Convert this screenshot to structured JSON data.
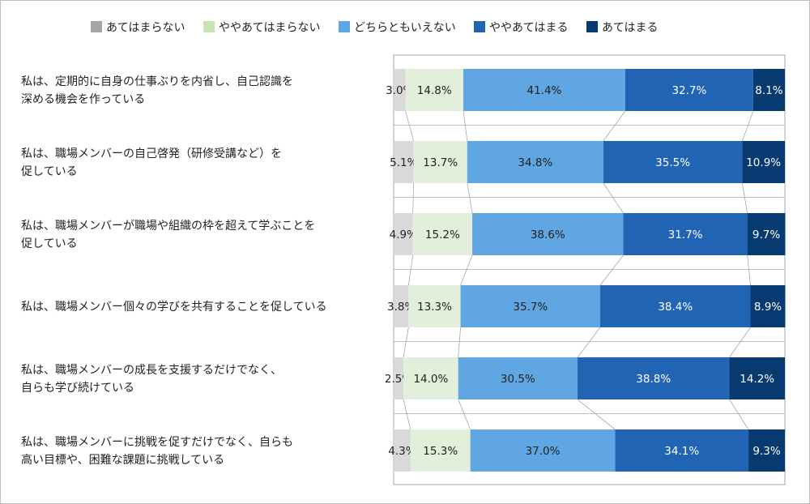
{
  "chart_data": {
    "type": "bar",
    "orientation": "horizontal-stacked-100",
    "legend_position": "top",
    "legend": [
      "あてはまらない",
      "ややあてはまらない",
      "どちらともいえない",
      "ややあてはまる",
      "あてはまる"
    ],
    "colors": [
      "#d9d9d9",
      "#e2efda",
      "#5fa6e2",
      "#2264b4",
      "#063a70"
    ],
    "legend_colors": [
      "#a6a6a6",
      "#c9e3b5",
      "#5fa6e2",
      "#2264b4",
      "#063a70"
    ],
    "label_colors": [
      "#222222",
      "#222222",
      "#222222",
      "#ffffff",
      "#ffffff"
    ],
    "categories": [
      "私は、定期的に自身の仕事ぶりを内省し、自己認識を\n深める機会を作っている",
      "私は、職場メンバーの自己啓発（研修受講など）を\n促している",
      "私は、職場メンバーが職場や組織の枠を超えて学ぶことを\n促している",
      "私は、職場メンバー個々の学びを共有することを促している",
      "私は、職場メンバーの成長を支援するだけでなく、\n自らも学び続けている",
      "私は、職場メンバーに挑戦を促すだけでなく、自らも\n高い目標や、困難な課題に挑戦している"
    ],
    "series": [
      {
        "name": "あてはまらない",
        "values": [
          3.0,
          5.1,
          4.9,
          3.8,
          2.5,
          4.3
        ]
      },
      {
        "name": "ややあてはまらない",
        "values": [
          14.8,
          13.7,
          15.2,
          13.3,
          14.0,
          15.3
        ]
      },
      {
        "name": "どちらともいえない",
        "values": [
          41.4,
          34.8,
          38.6,
          35.7,
          30.5,
          37.0
        ]
      },
      {
        "name": "ややあてはまる",
        "values": [
          32.7,
          35.5,
          31.7,
          38.4,
          38.8,
          34.1
        ]
      },
      {
        "name": "あてはまる",
        "values": [
          8.1,
          10.9,
          9.7,
          8.9,
          14.2,
          9.3
        ]
      }
    ],
    "value_suffix": "%",
    "xlim": [
      0,
      100
    ]
  }
}
